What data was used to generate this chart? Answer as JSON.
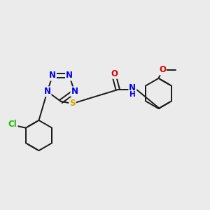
{
  "background_color": "#ebebeb",
  "bond_color": "#1a1a1a",
  "atom_colors": {
    "N": "#0000ee",
    "O": "#dd0000",
    "S": "#ccaa00",
    "Cl": "#22bb00",
    "C": "#1a1a1a",
    "H": "#1a1a1a"
  },
  "font_size_atoms": 8.5,
  "line_width": 1.4,
  "figsize": [
    3.0,
    3.0
  ],
  "dpi": 100
}
